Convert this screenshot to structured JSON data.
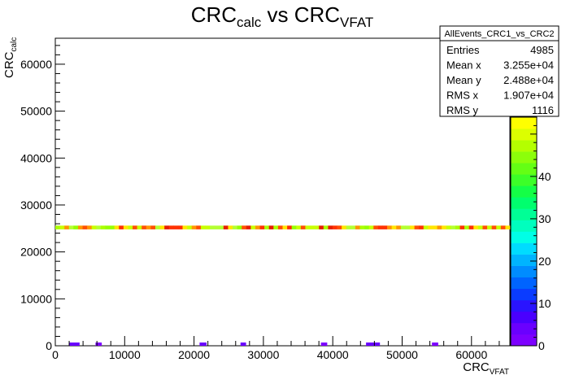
{
  "chart_data": {
    "type": "heatmap",
    "title": {
      "main_a": "CRC",
      "sub_a": "calc",
      "mid": " vs CRC",
      "sub_b": "VFAT"
    },
    "xlabel": {
      "main": "CRC",
      "sub": "VFAT"
    },
    "ylabel": {
      "main": "CRC",
      "sub": "calc"
    },
    "xlim": [
      0,
      65535
    ],
    "ylim": [
      0,
      65535
    ],
    "xticks": [
      0,
      10000,
      20000,
      30000,
      40000,
      50000,
      60000
    ],
    "yticks": [
      0,
      10000,
      20000,
      30000,
      40000,
      50000,
      60000
    ],
    "zlim": [
      0,
      54
    ],
    "zticks": [
      0,
      10,
      20,
      30,
      40
    ],
    "band": {
      "y_min": 24800,
      "y_max": 25600,
      "bins": 100,
      "z_values": [
        38,
        42,
        45,
        50,
        40,
        36,
        44,
        48,
        39,
        41,
        35,
        46,
        43,
        37,
        49,
        40,
        42,
        38,
        45,
        41,
        36,
        44,
        47,
        52,
        39,
        43,
        40,
        46,
        37,
        48,
        42,
        41,
        39,
        45,
        38,
        44,
        50,
        36,
        43,
        41,
        40,
        47,
        39,
        42,
        45,
        37,
        44,
        51,
        38,
        41,
        43,
        46,
        40,
        39,
        44,
        42,
        48,
        36,
        45,
        41,
        39,
        43,
        47,
        40,
        38,
        44,
        42,
        53,
        37,
        45,
        41,
        40,
        46,
        39,
        43,
        42,
        38,
        44,
        49,
        41,
        40,
        45,
        37,
        43,
        42,
        46,
        39,
        41,
        44,
        40,
        38,
        52,
        43,
        45,
        41,
        39,
        44,
        42,
        47,
        40
      ]
    },
    "low_bins": [
      {
        "x_start": 2000,
        "x_end": 3500,
        "z": 3
      },
      {
        "x_start": 5800,
        "x_end": 6700,
        "z": 2
      },
      {
        "x_start": 20800,
        "x_end": 21800,
        "z": 4
      },
      {
        "x_start": 26700,
        "x_end": 27500,
        "z": 3
      },
      {
        "x_start": 38300,
        "x_end": 39200,
        "z": 2
      },
      {
        "x_start": 44800,
        "x_end": 46800,
        "z": 3
      },
      {
        "x_start": 54300,
        "x_end": 55200,
        "z": 2
      }
    ]
  },
  "stats_box": {
    "name": "AllEvents_CRC1_vs_CRC2",
    "rows": [
      {
        "label": "Entries",
        "value": "4985"
      },
      {
        "label": "Mean x",
        "value": "3.255e+04"
      },
      {
        "label": "Mean y",
        "value": "2.488e+04"
      },
      {
        "label": "RMS x",
        "value": "1.907e+04"
      },
      {
        "label": "RMS y",
        "value": "1116"
      }
    ]
  },
  "palette": [
    "#7d00ff",
    "#6a00ff",
    "#4a00ff",
    "#2a14ff",
    "#0a3cff",
    "#0064ff",
    "#008cff",
    "#00b4ff",
    "#00dcff",
    "#00ffe6",
    "#00ffbe",
    "#00ff96",
    "#00ff6e",
    "#14ff46",
    "#3cff28",
    "#64ff14",
    "#8cff0a",
    "#b4ff00",
    "#dcff00",
    "#ffff00"
  ],
  "band_palette": [
    "#c8ff00",
    "#ffe600",
    "#ff5000",
    "#e61e00",
    "#96ff00",
    "#aaff00",
    "#ff9600",
    "#ff3200",
    "#b4ff32"
  ]
}
